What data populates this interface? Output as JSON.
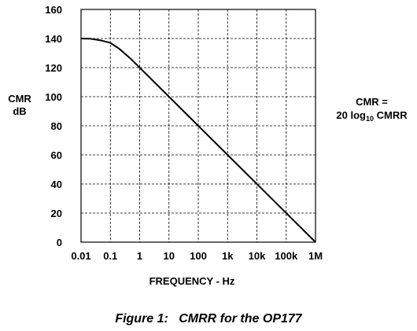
{
  "chart_data": {
    "type": "line",
    "title": "",
    "ylabel": [
      "CMR",
      "dB"
    ],
    "xlabel": "FREQUENCY - Hz",
    "xscale": "log",
    "xlim": [
      0.01,
      1000000
    ],
    "ylim": [
      0,
      160
    ],
    "yticks": [
      0,
      20,
      40,
      60,
      80,
      100,
      120,
      140,
      160
    ],
    "xtick_labels": [
      "0.01",
      "0.1",
      "1",
      "10",
      "100",
      "1k",
      "10k",
      "100k",
      "1M"
    ],
    "xticks": [
      0.01,
      0.1,
      1,
      10,
      100,
      1000,
      10000,
      100000,
      1000000
    ],
    "grid": true,
    "series": [
      {
        "x": [
          0.01,
          0.02,
          0.05,
          0.1,
          0.2,
          0.5,
          1,
          10,
          100,
          1000,
          10000,
          100000,
          1000000
        ],
        "y": [
          140,
          139.9,
          138.6,
          137,
          133,
          126,
          120,
          100,
          80,
          60,
          40,
          20,
          0
        ]
      }
    ],
    "annotation": {
      "line1": "CMR =",
      "line2_prefix": "20 log",
      "line2_sub": "10",
      "line2_suffix": " CMRR"
    }
  },
  "caption": "Figure 1:   CMRR for the OP177"
}
